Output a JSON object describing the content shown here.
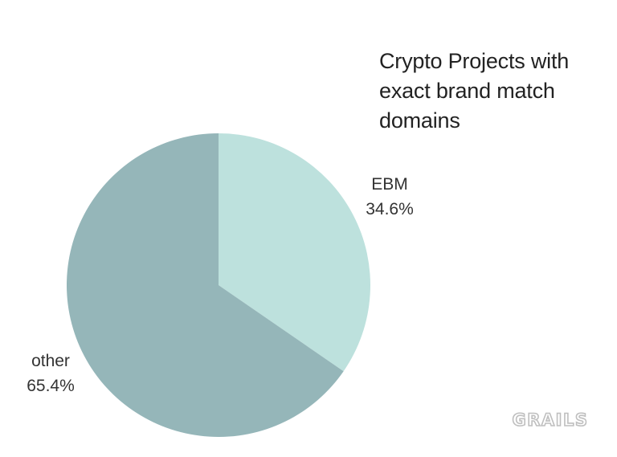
{
  "chart_data": {
    "type": "pie",
    "title_lines": [
      "Crypto Projects with",
      "exact brand match",
      "domains"
    ],
    "slices": [
      {
        "label": "EBM",
        "value": 34.6,
        "display": "34.6%",
        "color": "#bde1dd"
      },
      {
        "label": "other",
        "value": 65.4,
        "display": "65.4%",
        "color": "#95b6b9"
      }
    ],
    "start_angle_deg": 0,
    "direction": "clockwise",
    "legend": "none"
  },
  "brand": {
    "logo_text": "GRAILS",
    "color": "#bfbfbf"
  }
}
